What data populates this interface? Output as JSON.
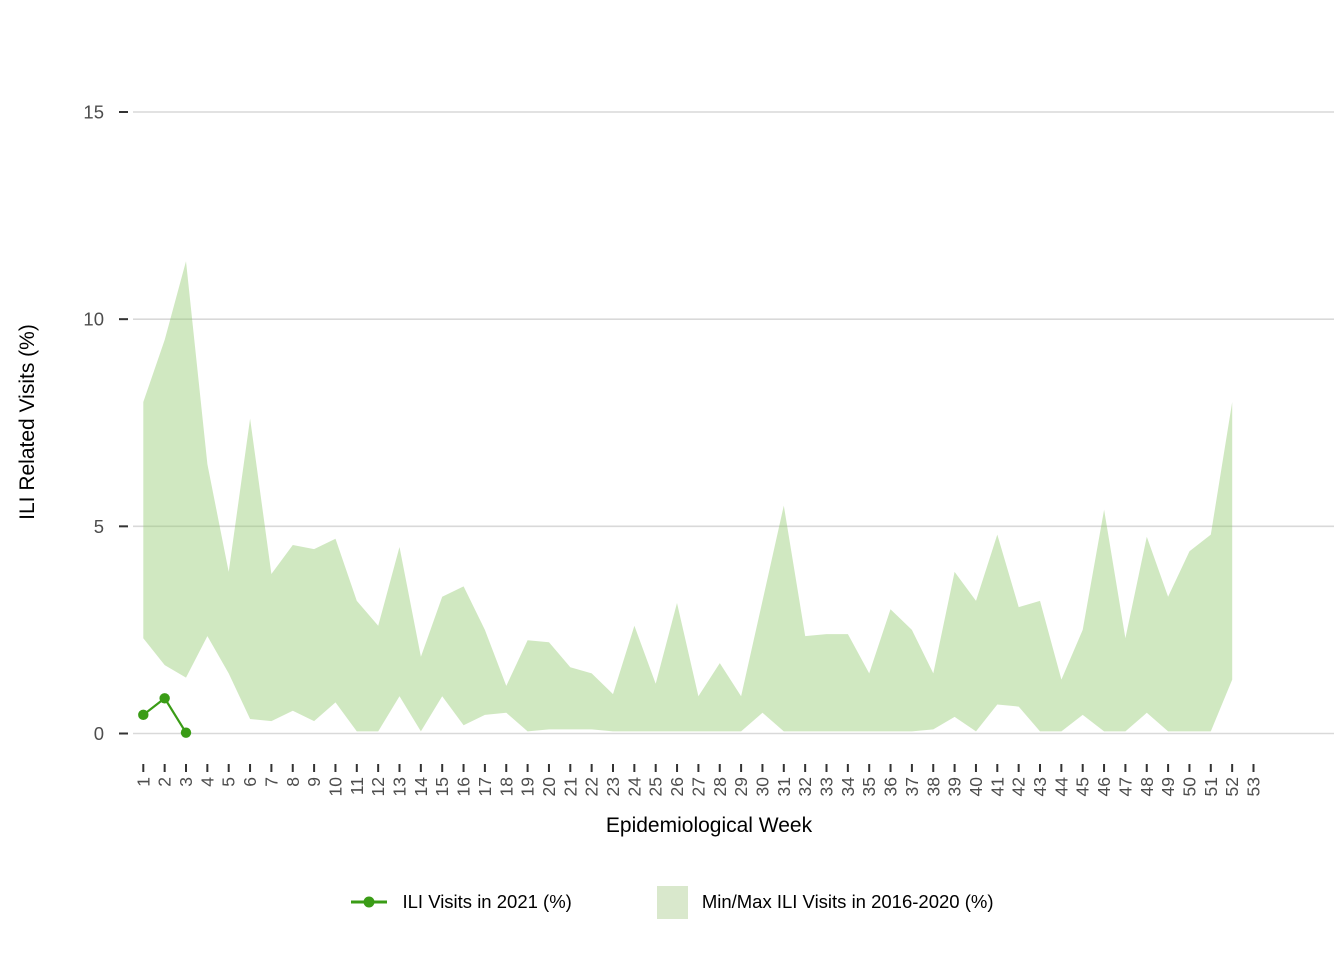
{
  "axes": {
    "x_title": "Epidemiological Week",
    "y_title": "ILI Related Visits (%)"
  },
  "colors": {
    "line": "#3a9c16",
    "ribbon_fill": "#8fc96c",
    "ribbon_solid": "#d9e8cc",
    "grid": "#d9d9d9",
    "tick_mark": "#333333",
    "tick_label": "#4d4d4d"
  },
  "chart_data": {
    "type": "area",
    "title": "",
    "xlabel": "Epidemiological Week",
    "ylabel": "ILI Related Visits (%)",
    "grid": "horizontal-only",
    "legend_position": "bottom",
    "ylim": [
      0,
      15
    ],
    "y_ticks": [
      0,
      5,
      10,
      15
    ],
    "x_tick_labels": [
      "1",
      "2",
      "3",
      "4",
      "5",
      "6",
      "7",
      "8",
      "9",
      "10",
      "11",
      "12",
      "13",
      "14",
      "15",
      "16",
      "17",
      "18",
      "19",
      "20",
      "21",
      "22",
      "23",
      "24",
      "25",
      "26",
      "27",
      "28",
      "29",
      "30",
      "31",
      "32",
      "33",
      "34",
      "35",
      "36",
      "37",
      "38",
      "39",
      "40",
      "41",
      "42",
      "43",
      "44",
      "45",
      "46",
      "47",
      "48",
      "49",
      "50",
      "51",
      "52",
      "53"
    ],
    "series": [
      {
        "name": "ILI Visits in 2021 (%)",
        "type": "line",
        "color": "#3a9c16",
        "x": [
          1,
          2,
          3
        ],
        "values": [
          0.45,
          0.85,
          0.02
        ]
      },
      {
        "name": "Min/Max ILI Visits in 2016-2020 (%)",
        "type": "band",
        "color": "#8fc96c",
        "opacity": 0.42,
        "x_first_week": 1,
        "upper": [
          8.0,
          9.5,
          11.4,
          6.5,
          3.9,
          7.6,
          3.85,
          4.55,
          4.45,
          4.7,
          3.2,
          2.6,
          4.5,
          1.85,
          3.3,
          3.55,
          2.5,
          1.15,
          2.25,
          2.2,
          1.6,
          1.45,
          0.95,
          2.6,
          1.2,
          3.15,
          0.9,
          1.7,
          0.9,
          3.2,
          5.5,
          2.35,
          2.4,
          2.4,
          1.45,
          3.0,
          2.5,
          1.45,
          3.9,
          3.2,
          4.8,
          3.05,
          3.2,
          1.3,
          2.5,
          5.4,
          2.3,
          4.75,
          3.3,
          4.4,
          4.8,
          8.0
        ],
        "lower": [
          2.3,
          1.65,
          1.35,
          2.35,
          1.45,
          0.35,
          0.3,
          0.55,
          0.3,
          0.75,
          0.05,
          0.05,
          0.9,
          0.05,
          0.9,
          0.2,
          0.45,
          0.5,
          0.05,
          0.1,
          0.1,
          0.1,
          0.05,
          0.05,
          0.05,
          0.05,
          0.05,
          0.05,
          0.05,
          0.5,
          0.05,
          0.05,
          0.05,
          0.05,
          0.05,
          0.05,
          0.05,
          0.1,
          0.4,
          0.05,
          0.7,
          0.65,
          0.05,
          0.05,
          0.45,
          0.05,
          0.05,
          0.5,
          0.05,
          0.05,
          0.05,
          1.3
        ]
      }
    ]
  }
}
